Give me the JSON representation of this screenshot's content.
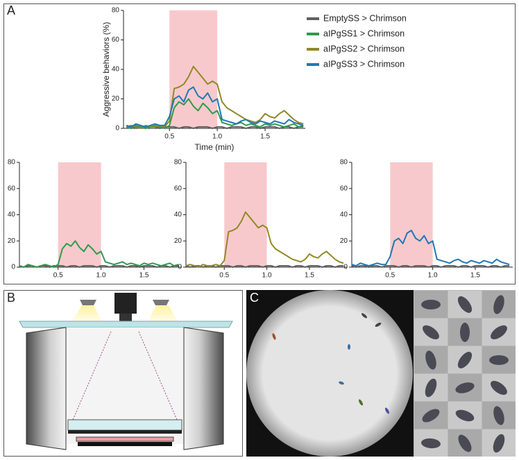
{
  "panels": [
    "A",
    "B",
    "C"
  ],
  "chart_data": [
    {
      "type": "line",
      "ylabel": "Aggressive behaviors (%)",
      "xlabel": "Time (min)",
      "shade": [
        0.5,
        1.0
      ],
      "shade_color": "#f8c9cc",
      "xlim": [
        0.02,
        1.92
      ],
      "xticks": [
        0.5,
        {
          "value": 1,
          "label": "1.0"
        },
        1.5
      ],
      "ylim": [
        0,
        80
      ],
      "yticks": [
        0,
        20,
        40,
        60,
        80
      ],
      "x": [
        0.05,
        0.1,
        0.15,
        0.2,
        0.25,
        0.3,
        0.35,
        0.4,
        0.45,
        0.5,
        0.55,
        0.6,
        0.65,
        0.7,
        0.75,
        0.8,
        0.85,
        0.9,
        0.95,
        1,
        1.05,
        1.1,
        1.15,
        1.2,
        1.25,
        1.3,
        1.35,
        1.4,
        1.45,
        1.5,
        1.55,
        1.6,
        1.65,
        1.7,
        1.75,
        1.8,
        1.85,
        1.9
      ],
      "series": [
        {
          "name": "EmptySS > Chrimson",
          "color": "#606060",
          "values": [
            1,
            0,
            1,
            1,
            0,
            1,
            1,
            0,
            1,
            1,
            1,
            0,
            1,
            1,
            0,
            1,
            1,
            1,
            0,
            1,
            1,
            0,
            1,
            1,
            1,
            0,
            1,
            1,
            0,
            1,
            1,
            1,
            0,
            1,
            1,
            0,
            1,
            1
          ]
        },
        {
          "name": "aIPgSS1 > Chrimson",
          "color": "#2e9a4c",
          "values": [
            1,
            0,
            2,
            1,
            0,
            1,
            2,
            1,
            0,
            2,
            14,
            18,
            16,
            20,
            15,
            12,
            17,
            14,
            10,
            12,
            4,
            3,
            2,
            3,
            4,
            2,
            3,
            2,
            1,
            3,
            2,
            3,
            2,
            1,
            2,
            3,
            1,
            2
          ]
        },
        {
          "name": "aIPgSS2 > Chrimson",
          "color": "#8e8a26",
          "values": [
            1,
            2,
            1,
            0,
            2,
            1,
            1,
            2,
            1,
            5,
            27,
            28,
            30,
            35,
            42,
            38,
            34,
            30,
            32,
            30,
            18,
            14,
            12,
            10,
            8,
            6,
            5,
            4,
            6,
            10,
            8,
            7,
            10,
            12,
            9,
            6,
            4,
            3
          ]
        },
        {
          "name": "aIPgSS3 > Chrimson",
          "color": "#1f77b4",
          "values": [
            2,
            1,
            3,
            2,
            1,
            2,
            3,
            2,
            2,
            8,
            20,
            22,
            18,
            26,
            28,
            22,
            20,
            24,
            18,
            20,
            6,
            5,
            4,
            3,
            5,
            6,
            4,
            3,
            5,
            4,
            3,
            5,
            4,
            3,
            6,
            4,
            3,
            2
          ]
        }
      ]
    },
    {
      "type": "line",
      "shade": [
        0.5,
        1.0
      ],
      "shade_color": "#f8c9cc",
      "xlim": [
        0.05,
        1.94
      ],
      "xticks": [
        0.5,
        {
          "value": 1,
          "label": "1.0"
        },
        1.5
      ],
      "ylim": [
        0,
        80
      ],
      "yticks": [
        0,
        20,
        40,
        60,
        80
      ],
      "x": [
        0.05,
        0.1,
        0.15,
        0.2,
        0.25,
        0.3,
        0.35,
        0.4,
        0.45,
        0.5,
        0.55,
        0.6,
        0.65,
        0.7,
        0.75,
        0.8,
        0.85,
        0.9,
        0.95,
        1,
        1.05,
        1.1,
        1.15,
        1.2,
        1.25,
        1.3,
        1.35,
        1.4,
        1.45,
        1.5,
        1.55,
        1.6,
        1.65,
        1.7,
        1.75,
        1.8,
        1.85,
        1.9
      ],
      "series": [
        {
          "color": "#606060",
          "values": [
            1,
            0,
            1,
            1,
            0,
            1,
            1,
            0,
            1,
            1,
            1,
            0,
            1,
            1,
            0,
            1,
            1,
            1,
            0,
            1,
            1,
            0,
            1,
            1,
            1,
            0,
            1,
            1,
            0,
            1,
            1,
            1,
            0,
            1,
            1,
            0,
            1,
            1
          ]
        },
        {
          "color": "#2e9a4c",
          "values": [
            1,
            0,
            2,
            1,
            0,
            1,
            2,
            1,
            0,
            2,
            14,
            18,
            16,
            20,
            15,
            12,
            17,
            14,
            10,
            12,
            4,
            3,
            2,
            3,
            4,
            2,
            3,
            2,
            1,
            3,
            2,
            3,
            2,
            1,
            2,
            3,
            1,
            2
          ]
        }
      ]
    },
    {
      "type": "line",
      "shade": [
        0.5,
        1.0
      ],
      "shade_color": "#f8c9cc",
      "xlim": [
        0.05,
        1.94
      ],
      "xticks": [
        0.5,
        {
          "value": 1,
          "label": "1.0"
        },
        1.5
      ],
      "ylim": [
        0,
        80
      ],
      "yticks": [
        0,
        20,
        40,
        60,
        80
      ],
      "x": [
        0.05,
        0.1,
        0.15,
        0.2,
        0.25,
        0.3,
        0.35,
        0.4,
        0.45,
        0.5,
        0.55,
        0.6,
        0.65,
        0.7,
        0.75,
        0.8,
        0.85,
        0.9,
        0.95,
        1,
        1.05,
        1.1,
        1.15,
        1.2,
        1.25,
        1.3,
        1.35,
        1.4,
        1.45,
        1.5,
        1.55,
        1.6,
        1.65,
        1.7,
        1.75,
        1.8,
        1.85,
        1.9
      ],
      "series": [
        {
          "color": "#606060",
          "values": [
            1,
            0,
            1,
            1,
            0,
            1,
            1,
            0,
            1,
            1,
            1,
            0,
            1,
            1,
            0,
            1,
            1,
            1,
            0,
            1,
            1,
            0,
            1,
            1,
            1,
            0,
            1,
            1,
            0,
            1,
            1,
            1,
            0,
            1,
            1,
            0,
            1,
            1
          ]
        },
        {
          "color": "#8e8a26",
          "values": [
            1,
            2,
            1,
            0,
            2,
            1,
            1,
            2,
            1,
            5,
            27,
            28,
            30,
            35,
            42,
            38,
            34,
            30,
            32,
            30,
            18,
            14,
            12,
            10,
            8,
            6,
            5,
            4,
            6,
            10,
            8,
            7,
            10,
            12,
            9,
            6,
            4,
            3
          ]
        }
      ]
    },
    {
      "type": "line",
      "shade": [
        0.5,
        1.0
      ],
      "shade_color": "#f8c9cc",
      "xlim": [
        0.05,
        1.94
      ],
      "xticks": [
        0.5,
        {
          "value": 1,
          "label": "1.0"
        },
        1.5
      ],
      "ylim": [
        0,
        80
      ],
      "yticks": [
        0,
        20,
        40,
        60,
        80
      ],
      "x": [
        0.05,
        0.1,
        0.15,
        0.2,
        0.25,
        0.3,
        0.35,
        0.4,
        0.45,
        0.5,
        0.55,
        0.6,
        0.65,
        0.7,
        0.75,
        0.8,
        0.85,
        0.9,
        0.95,
        1,
        1.05,
        1.1,
        1.15,
        1.2,
        1.25,
        1.3,
        1.35,
        1.4,
        1.45,
        1.5,
        1.55,
        1.6,
        1.65,
        1.7,
        1.75,
        1.8,
        1.85,
        1.9
      ],
      "series": [
        {
          "color": "#606060",
          "values": [
            1,
            0,
            1,
            1,
            0,
            1,
            1,
            0,
            1,
            1,
            1,
            0,
            1,
            1,
            0,
            1,
            1,
            1,
            0,
            1,
            1,
            0,
            1,
            1,
            1,
            0,
            1,
            1,
            0,
            1,
            1,
            1,
            0,
            1,
            1,
            0,
            1,
            1
          ]
        },
        {
          "color": "#1f77b4",
          "values": [
            2,
            1,
            3,
            2,
            1,
            2,
            3,
            2,
            2,
            8,
            20,
            22,
            18,
            26,
            28,
            22,
            20,
            24,
            18,
            20,
            6,
            5,
            4,
            3,
            5,
            6,
            4,
            3,
            5,
            4,
            3,
            5,
            4,
            3,
            6,
            4,
            3,
            2
          ]
        }
      ]
    }
  ]
}
